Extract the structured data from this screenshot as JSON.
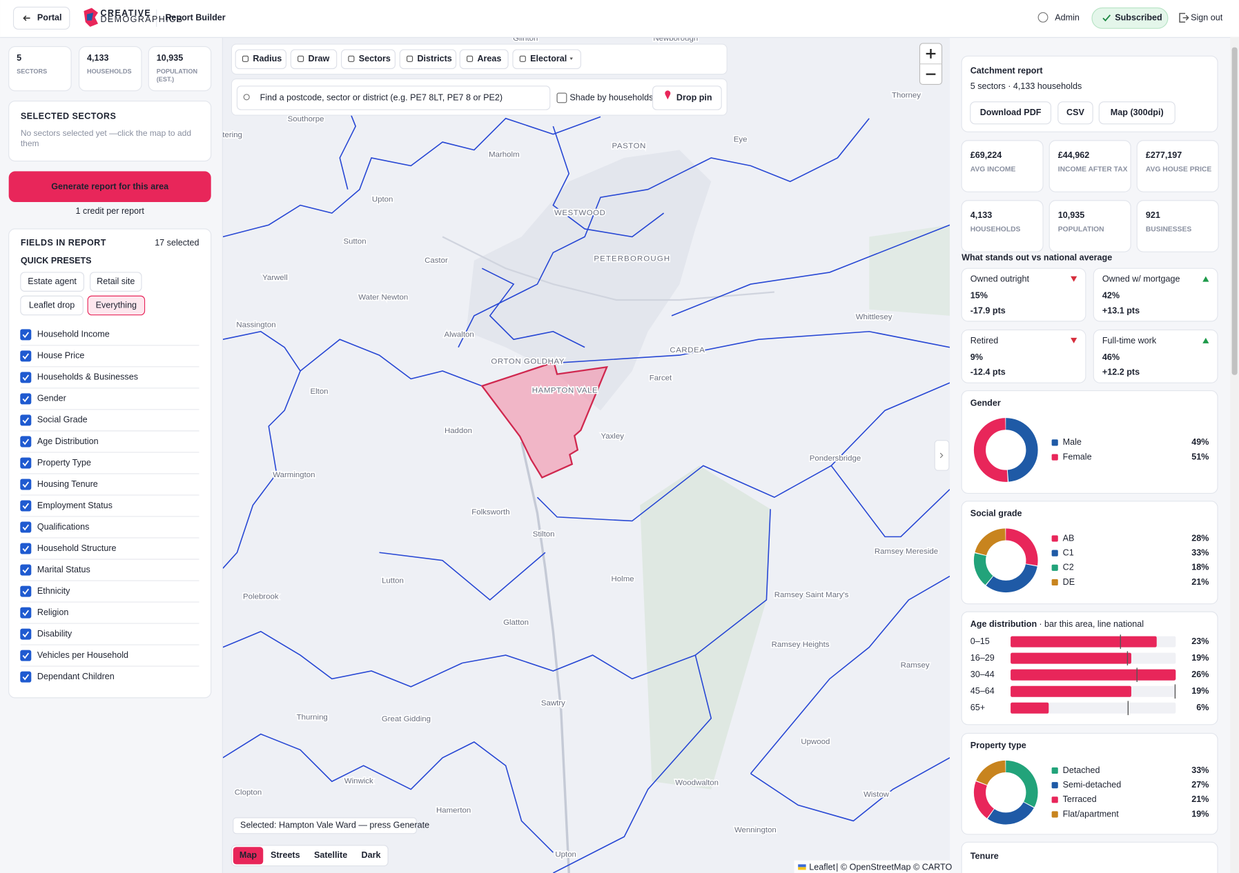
{
  "header": {
    "back": "Portal",
    "logo_top": "CREATIVE",
    "logo_bottom": "DEMOGRAPHICS",
    "title": "Report Builder",
    "user": "Admin",
    "status": "Subscribed",
    "signout": "Sign out"
  },
  "stats": [
    {
      "value": "5",
      "label": "SECTORS"
    },
    {
      "value": "4,133",
      "label": "HOUSEHOLDS"
    },
    {
      "value": "10,935",
      "label": "POPULATION (EST.)"
    }
  ],
  "selected": {
    "title": "SELECTED SECTORS",
    "empty": "No sectors selected yet —click the map to add them"
  },
  "generate": {
    "button": "Generate report for this area",
    "note": "1 credit per report"
  },
  "fields": {
    "title": "FIELDS IN REPORT",
    "count": "17 selected",
    "presets_title": "QUICK PRESETS",
    "presets": [
      "Estate agent",
      "Retail site",
      "Leaflet drop",
      "Everything"
    ],
    "active_preset": 3,
    "items": [
      {
        "label": "Household Income",
        "checked": true
      },
      {
        "label": "House Price",
        "checked": true
      },
      {
        "label": "Households & Businesses",
        "checked": true
      },
      {
        "label": "Gender",
        "checked": true
      },
      {
        "label": "Social Grade",
        "checked": true
      },
      {
        "label": "Age Distribution",
        "checked": true
      },
      {
        "label": "Property Type",
        "checked": true
      },
      {
        "label": "Housing Tenure",
        "checked": true
      },
      {
        "label": "Employment Status",
        "checked": true
      },
      {
        "label": "Qualifications",
        "checked": true
      },
      {
        "label": "Household Structure",
        "checked": true
      },
      {
        "label": "Marital Status",
        "checked": true
      },
      {
        "label": "Ethnicity",
        "checked": true
      },
      {
        "label": "Religion",
        "checked": true
      },
      {
        "label": "Disability",
        "checked": true
      },
      {
        "label": "Vehicles per Household",
        "checked": true
      },
      {
        "label": "Dependant Children",
        "checked": true
      }
    ]
  },
  "map": {
    "tools": [
      "Radius",
      "Draw",
      "Sectors",
      "Districts",
      "Areas",
      "Electoral"
    ],
    "search_placeholder": "Find a postcode, sector or district (e.g. PE7 8LT, PE7 8 or PE2)",
    "shade": "Shade by households",
    "drop": "Drop pin",
    "places": [
      "Glinton",
      "Newborough",
      "Southorpe",
      "Thorney",
      "Eye",
      "Marholm",
      "PASTON",
      "Upton",
      "WESTWOOD",
      "Sutton",
      "Castor",
      "PETERBOROUGH",
      "Yarwell",
      "Water Newton",
      "Whittlesey",
      "Nassington",
      "Alwalton",
      "ORTON GOLDHAY",
      "CARDEA",
      "HAMPTON VALE",
      "Farcet",
      "Elton",
      "Haddon",
      "Yaxley",
      "Pondersbridge",
      "Warmington",
      "Folksworth",
      "Stilton",
      "Ramsey Mereside",
      "Lutton",
      "Holme",
      "Polebrook",
      "Ramsey Saint Mary's",
      "Glatton",
      "Ramsey Heights",
      "Ramsey",
      "Sawtry",
      "Thurning",
      "Great Gidding",
      "Upwood",
      "Clopton",
      "Winwick",
      "Woodwalton",
      "Wistow",
      "Hamerton",
      "Wennington",
      "Upton",
      "tering"
    ],
    "status": "Selected: Hampton Vale Ward — press Generate",
    "layers": [
      "Map",
      "Streets",
      "Satellite",
      "Dark"
    ],
    "active_layer": 0,
    "attribution_link": "Leaflet",
    "attribution": "| © OpenStreetMap © CARTO"
  },
  "report": {
    "title": "Catchment report",
    "subtitle": "5 sectors · 4,133 households",
    "buttons": [
      "Download PDF",
      "CSV",
      "Map (300dpi)"
    ],
    "kpis": [
      {
        "value": "£69,224",
        "label": "AVG INCOME"
      },
      {
        "value": "£44,962",
        "label": "INCOME AFTER TAX"
      },
      {
        "value": "£277,197",
        "label": "AVG HOUSE PRICE"
      },
      {
        "value": "4,133",
        "label": "HOUSEHOLDS"
      },
      {
        "value": "10,935",
        "label": "POPULATION"
      },
      {
        "value": "921",
        "label": "BUSINESSES"
      }
    ],
    "standout_title": "What stands out vs national average",
    "standouts": [
      {
        "label": "Owned outright",
        "value": "15%",
        "delta": "-17.9 pts",
        "direction": "down"
      },
      {
        "label": "Owned w/ mortgage",
        "value": "42%",
        "delta": "+13.1 pts",
        "direction": "up"
      },
      {
        "label": "Retired",
        "value": "9%",
        "delta": "-12.4 pts",
        "direction": "down"
      },
      {
        "label": "Full-time work",
        "value": "46%",
        "delta": "+12.2 pts",
        "direction": "up"
      }
    ],
    "tenure_title": "Tenure"
  },
  "chart_data": [
    {
      "type": "donut",
      "title": "Gender",
      "categories": [
        "Male",
        "Female"
      ],
      "values": [
        49,
        51
      ],
      "value_labels": [
        "49%",
        "51%"
      ],
      "colors": [
        "#1f5aa6",
        "#e8265a"
      ]
    },
    {
      "type": "donut",
      "title": "Social grade",
      "categories": [
        "AB",
        "C1",
        "C2",
        "DE"
      ],
      "values": [
        28,
        33,
        18,
        21
      ],
      "value_labels": [
        "28%",
        "33%",
        "18%",
        "21%"
      ],
      "colors": [
        "#e8265a",
        "#1f5aa6",
        "#22a37a",
        "#c8841e"
      ]
    },
    {
      "type": "bar",
      "orientation": "horizontal",
      "title": "Age distribution",
      "subtitle": "· bar this area, line national",
      "categories": [
        "0–15",
        "16–29",
        "30–44",
        "45–64",
        "65+"
      ],
      "values": [
        23,
        19,
        26,
        19,
        6
      ],
      "value_labels": [
        "23%",
        "19%",
        "26%",
        "19%",
        "6%"
      ],
      "national": [
        17.3,
        18.4,
        19.9,
        25.9,
        18.5
      ],
      "xlim": [
        0,
        26
      ],
      "color": "#e8265a"
    },
    {
      "type": "donut",
      "title": "Property type",
      "categories": [
        "Detached",
        "Semi-detached",
        "Terraced",
        "Flat/apartment"
      ],
      "values": [
        33,
        27,
        21,
        19
      ],
      "value_labels": [
        "33%",
        "27%",
        "21%",
        "19%"
      ],
      "colors": [
        "#22a37a",
        "#1f5aa6",
        "#e8265a",
        "#c8841e"
      ]
    }
  ]
}
